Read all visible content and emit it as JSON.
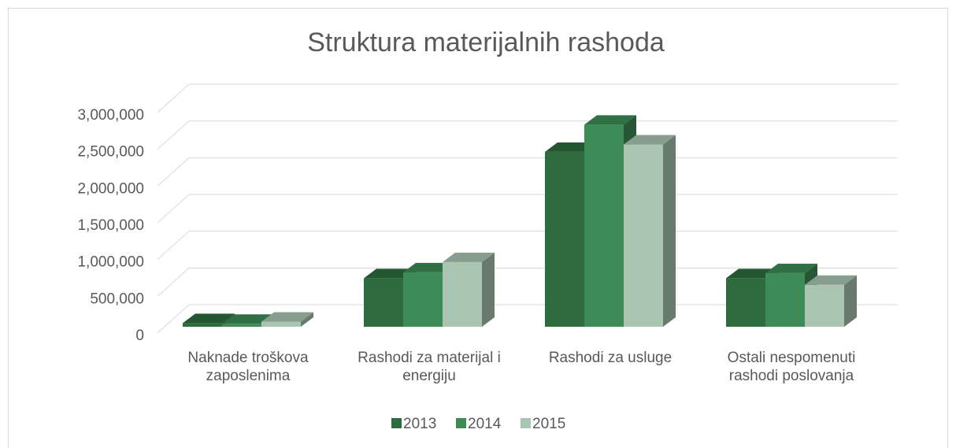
{
  "chart_data": {
    "type": "bar3d",
    "title": "Struktura materijalnih rashoda",
    "categories": [
      "Naknade troškova zaposlenima",
      "Rashodi za materijal i energiju",
      "Rashodi za usluge",
      "Ostali nespomenuti rashodi poslovanja"
    ],
    "series": [
      {
        "name": "2013",
        "color": "#2e6b3e",
        "values": [
          50000,
          660000,
          2380000,
          660000
        ]
      },
      {
        "name": "2014",
        "color": "#3d8b56",
        "values": [
          40000,
          740000,
          2750000,
          730000
        ]
      },
      {
        "name": "2015",
        "color": "#a9c4b0",
        "values": [
          70000,
          880000,
          2480000,
          570000
        ]
      }
    ],
    "ylim": [
      0,
      3000000
    ],
    "yticks": [
      0,
      {
        "value": 500000,
        "label": "500,000"
      },
      {
        "value": 1000000,
        "label": "1,000,000"
      },
      {
        "value": 1500000,
        "label": "1,500,000"
      },
      {
        "value": 2000000,
        "label": "2,000,000"
      },
      {
        "value": 2500000,
        "label": "2,500,000"
      },
      {
        "value": 3000000,
        "label": "3,000,000"
      }
    ],
    "grid": true,
    "legend": "bottom"
  }
}
